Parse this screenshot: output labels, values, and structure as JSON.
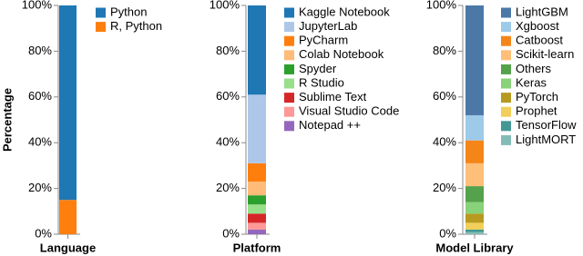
{
  "chart_data": [
    {
      "type": "stacked-bar",
      "y_label": "Percentage",
      "x_label": "Language",
      "ylim": [
        0,
        100
      ],
      "yticks": [
        {
          "value": 0,
          "label": "0%"
        },
        {
          "value": 20,
          "label": "20%"
        },
        {
          "value": 40,
          "label": "40%"
        },
        {
          "value": 60,
          "label": "60%"
        },
        {
          "value": 80,
          "label": "80%"
        },
        {
          "value": 100,
          "label": "100%"
        }
      ],
      "series": [
        {
          "name": "Python",
          "color": "#1f77b4",
          "values": [
            85
          ]
        },
        {
          "name": "R, Python",
          "color": "#ff7f0e",
          "values": [
            15
          ]
        }
      ]
    },
    {
      "type": "stacked-bar",
      "x_label": "Platform",
      "ylim": [
        0,
        100
      ],
      "yticks": [
        {
          "value": 0,
          "label": "0%"
        },
        {
          "value": 20,
          "label": "20%"
        },
        {
          "value": 40,
          "label": "40%"
        },
        {
          "value": 60,
          "label": "60%"
        },
        {
          "value": 80,
          "label": "80%"
        },
        {
          "value": 100,
          "label": "100%"
        }
      ],
      "series": [
        {
          "name": "Kaggle Notebook",
          "color": "#1f77b4",
          "values": [
            39
          ]
        },
        {
          "name": "JupyterLab",
          "color": "#aec7e8",
          "values": [
            30
          ]
        },
        {
          "name": "PyCharm",
          "color": "#ff7f0e",
          "values": [
            8
          ]
        },
        {
          "name": "Colab Notebook",
          "color": "#ffbb78",
          "values": [
            6
          ]
        },
        {
          "name": "Spyder",
          "color": "#2ca02c",
          "values": [
            4
          ]
        },
        {
          "name": "R Studio",
          "color": "#98df8a",
          "values": [
            4
          ]
        },
        {
          "name": "Sublime Text",
          "color": "#d62728",
          "values": [
            4
          ]
        },
        {
          "name": "Visual Studio Code",
          "color": "#ff9896",
          "values": [
            3
          ]
        },
        {
          "name": "Notepad ++",
          "color": "#9467bd",
          "values": [
            2
          ]
        }
      ]
    },
    {
      "type": "stacked-bar",
      "x_label": "Model Library",
      "ylim": [
        0,
        100
      ],
      "yticks": [
        {
          "value": 0,
          "label": "0%"
        },
        {
          "value": 20,
          "label": "20%"
        },
        {
          "value": 40,
          "label": "40%"
        },
        {
          "value": 60,
          "label": "60%"
        },
        {
          "value": 80,
          "label": "80%"
        },
        {
          "value": 100,
          "label": "100%"
        }
      ],
      "series": [
        {
          "name": "LightGBM",
          "color": "#4c78a8",
          "values": [
            48
          ]
        },
        {
          "name": "Xgboost",
          "color": "#9ecae9",
          "values": [
            11
          ]
        },
        {
          "name": "Catboost",
          "color": "#f58518",
          "values": [
            10
          ]
        },
        {
          "name": "Scikit-learn",
          "color": "#ffbf79",
          "values": [
            10
          ]
        },
        {
          "name": "Others",
          "color": "#54a24b",
          "values": [
            7
          ]
        },
        {
          "name": "Keras",
          "color": "#88d27a",
          "values": [
            5
          ]
        },
        {
          "name": "PyTorch",
          "color": "#b79a20",
          "values": [
            4
          ]
        },
        {
          "name": "Prophet",
          "color": "#f2cf5b",
          "values": [
            3
          ]
        },
        {
          "name": "TensorFlow",
          "color": "#439894",
          "values": [
            1
          ]
        },
        {
          "name": "LightMORT",
          "color": "#83bcb6",
          "values": [
            1
          ]
        }
      ]
    }
  ]
}
